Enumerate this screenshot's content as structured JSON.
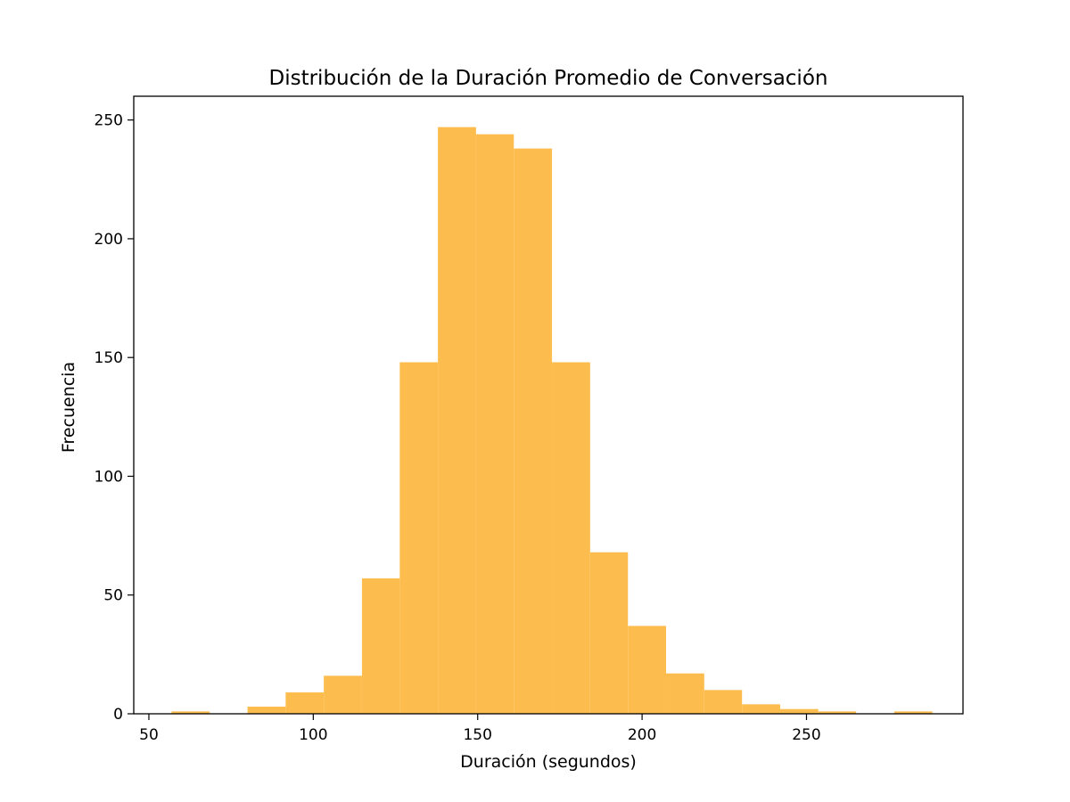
{
  "chart_data": {
    "type": "bar",
    "title": "Distribución de la Duración Promedio de Conversación",
    "xlabel": "Duración (segundos)",
    "ylabel": "Frecuencia",
    "xlim": [
      45.4,
      297.6
    ],
    "ylim": [
      0,
      260
    ],
    "xticks": [
      50,
      100,
      150,
      200,
      250
    ],
    "yticks": [
      0,
      50,
      100,
      150,
      200,
      250
    ],
    "bar_color": "#fdbd4e",
    "grid": false,
    "bins": [
      {
        "x0": 56.9,
        "x1": 68.5,
        "count": 1
      },
      {
        "x0": 68.5,
        "x1": 80.0,
        "count": 0
      },
      {
        "x0": 80.0,
        "x1": 91.6,
        "count": 3
      },
      {
        "x0": 91.6,
        "x1": 103.2,
        "count": 9
      },
      {
        "x0": 103.2,
        "x1": 114.8,
        "count": 16
      },
      {
        "x0": 114.8,
        "x1": 126.3,
        "count": 57
      },
      {
        "x0": 126.3,
        "x1": 137.9,
        "count": 148
      },
      {
        "x0": 137.9,
        "x1": 149.5,
        "count": 247
      },
      {
        "x0": 149.5,
        "x1": 161.0,
        "count": 244
      },
      {
        "x0": 161.0,
        "x1": 172.6,
        "count": 238
      },
      {
        "x0": 172.6,
        "x1": 184.2,
        "count": 148
      },
      {
        "x0": 184.2,
        "x1": 195.7,
        "count": 68
      },
      {
        "x0": 195.7,
        "x1": 207.3,
        "count": 37
      },
      {
        "x0": 207.3,
        "x1": 218.9,
        "count": 17
      },
      {
        "x0": 218.9,
        "x1": 230.4,
        "count": 10
      },
      {
        "x0": 230.4,
        "x1": 242.0,
        "count": 4
      },
      {
        "x0": 242.0,
        "x1": 253.6,
        "count": 2
      },
      {
        "x0": 253.6,
        "x1": 265.1,
        "count": 1
      },
      {
        "x0": 265.1,
        "x1": 276.7,
        "count": 0
      },
      {
        "x0": 276.7,
        "x1": 288.3,
        "count": 1
      }
    ]
  }
}
